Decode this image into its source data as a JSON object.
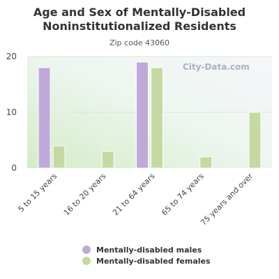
{
  "chart_data": {
    "type": "bar",
    "title_line1": "Age and Sex of Mentally-Disabled",
    "title_line2": "Noninstitutionalized Residents",
    "subtitle": "Zip code 43060",
    "categories": [
      "5 to 15 years",
      "16 to 20 years",
      "21 to 64 years",
      "65 to 74 years",
      "75 years and over"
    ],
    "series": [
      {
        "name": "Mentally-disabled males",
        "color": "#c0a9d9",
        "values": [
          18,
          0,
          19,
          0,
          0
        ]
      },
      {
        "name": "Mentally-disabled females",
        "color": "#c5d9a3",
        "values": [
          4,
          3,
          18,
          2,
          10
        ]
      }
    ],
    "yticks": [
      "0",
      "10",
      "20"
    ],
    "ylim": [
      0,
      20
    ],
    "grid": true,
    "legend_position": "bottom"
  },
  "watermark": "City-Data.com"
}
